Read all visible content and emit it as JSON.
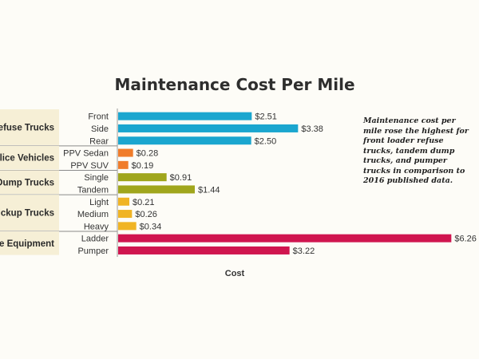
{
  "chart_data": {
    "type": "bar",
    "orientation": "horizontal",
    "title": "Maintenance Cost Per Mile",
    "xlabel": "Cost",
    "xlim": [
      0,
      6.3
    ],
    "grid": false,
    "value_prefix": "$",
    "groups": [
      {
        "name": "Refuse Trucks",
        "color": "#1ba6cf",
        "items": [
          {
            "label": "Front",
            "value": 2.51,
            "value_label": "$2.51"
          },
          {
            "label": "Side",
            "value": 3.38,
            "value_label": "$3.38"
          },
          {
            "label": "Rear",
            "value": 2.5,
            "value_label": "$2.50"
          }
        ]
      },
      {
        "name": "Police Vehicles",
        "color": "#f07c2a",
        "items": [
          {
            "label": "PPV Sedan",
            "value": 0.28,
            "value_label": "$0.28"
          },
          {
            "label": "PPV SUV",
            "value": 0.19,
            "value_label": "$0.19"
          }
        ]
      },
      {
        "name": "Dump Trucks",
        "color": "#a0a61c",
        "items": [
          {
            "label": "Single",
            "value": 0.91,
            "value_label": "$0.91"
          },
          {
            "label": "Tandem",
            "value": 1.44,
            "value_label": "$1.44"
          }
        ]
      },
      {
        "name": "Pickup Trucks",
        "color": "#f0b424",
        "items": [
          {
            "label": "Light",
            "value": 0.21,
            "value_label": "$0.21"
          },
          {
            "label": "Medium",
            "value": 0.26,
            "value_label": "$0.26"
          },
          {
            "label": "Heavy",
            "value": 0.34,
            "value_label": "$0.34"
          }
        ]
      },
      {
        "name": "Fire Equipment",
        "color": "#d0154f",
        "items": [
          {
            "label": "Ladder",
            "value": 6.26,
            "value_label": "$6.26"
          },
          {
            "label": "Pumper",
            "value": 3.22,
            "value_label": "$3.22"
          }
        ]
      }
    ],
    "annotation": "Maintenance cost per mile rose the highest for front loader refuse trucks, tandem dump trucks, and pumper trucks in comparison to 2016 published data."
  }
}
